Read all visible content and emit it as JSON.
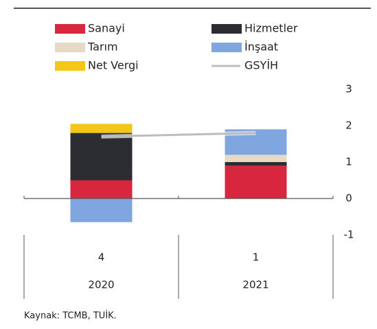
{
  "chart_data": {
    "type": "bar",
    "stacked": true,
    "categories": [
      [
        "4",
        "2020"
      ],
      [
        "1",
        "2021"
      ]
    ],
    "series": [
      {
        "name": "Sanayi",
        "color": "#d9263f",
        "values": [
          0.5,
          0.9
        ]
      },
      {
        "name": "Hizmetler",
        "color": "#2b2d33",
        "values": [
          1.3,
          0.1
        ]
      },
      {
        "name": "Tarım",
        "color": "#e6dac6",
        "values": [
          0,
          0.2
        ]
      },
      {
        "name": "İnşaat",
        "color": "#7fa6df",
        "values": [
          -0.65,
          0.7
        ]
      },
      {
        "name": "Net Vergi",
        "color": "#f5c518",
        "values": [
          0.25,
          0
        ]
      },
      {
        "name": "GSYİH",
        "color": "#bdbdbd",
        "kind": "line",
        "values": [
          1.7,
          1.8
        ]
      }
    ],
    "ylim": [
      -1,
      3
    ],
    "yticks": [
      -1,
      0,
      1,
      2,
      3
    ],
    "y_axis_side": "right",
    "source": "Kaynak: TCMB, TUİK."
  }
}
